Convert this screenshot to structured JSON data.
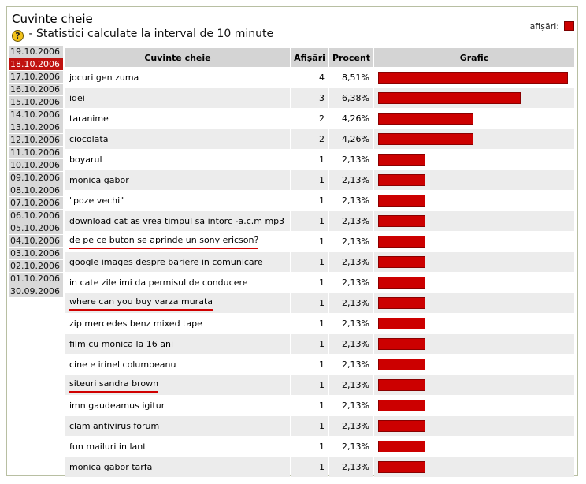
{
  "header": {
    "title": "Cuvinte cheie",
    "subtitle": "- Statistici calculate la interval de 10 minute",
    "help_icon": "question-icon",
    "legend_label": "afişări:",
    "bar_color": "#cc0000",
    "selected_color": "#c0120f"
  },
  "dates": [
    {
      "label": "19.10.2006",
      "selected": false
    },
    {
      "label": "18.10.2006",
      "selected": true
    },
    {
      "label": "17.10.2006",
      "selected": false
    },
    {
      "label": "16.10.2006",
      "selected": false
    },
    {
      "label": "15.10.2006",
      "selected": false
    },
    {
      "label": "14.10.2006",
      "selected": false
    },
    {
      "label": "13.10.2006",
      "selected": false
    },
    {
      "label": "12.10.2006",
      "selected": false
    },
    {
      "label": "11.10.2006",
      "selected": false
    },
    {
      "label": "10.10.2006",
      "selected": false
    },
    {
      "label": "09.10.2006",
      "selected": false
    },
    {
      "label": "08.10.2006",
      "selected": false
    },
    {
      "label": "07.10.2006",
      "selected": false
    },
    {
      "label": "06.10.2006",
      "selected": false
    },
    {
      "label": "05.10.2006",
      "selected": false
    },
    {
      "label": "04.10.2006",
      "selected": false
    },
    {
      "label": "03.10.2006",
      "selected": false
    },
    {
      "label": "02.10.2006",
      "selected": false
    },
    {
      "label": "01.10.2006",
      "selected": false
    },
    {
      "label": "30.09.2006",
      "selected": false
    }
  ],
  "table": {
    "headers": {
      "keyword": "Cuvinte cheie",
      "views": "Afişări",
      "percent": "Procent",
      "graph": "Grafic"
    },
    "rows": [
      {
        "keyword": "jocuri gen zuma",
        "views": 4,
        "percent": "8,51%",
        "share": 8.51,
        "underlined": false
      },
      {
        "keyword": "idei",
        "views": 3,
        "percent": "6,38%",
        "share": 6.38,
        "underlined": false
      },
      {
        "keyword": "taranime",
        "views": 2,
        "percent": "4,26%",
        "share": 4.26,
        "underlined": false
      },
      {
        "keyword": "ciocolata",
        "views": 2,
        "percent": "4,26%",
        "share": 4.26,
        "underlined": false
      },
      {
        "keyword": "boyarul",
        "views": 1,
        "percent": "2,13%",
        "share": 2.13,
        "underlined": false
      },
      {
        "keyword": "monica gabor",
        "views": 1,
        "percent": "2,13%",
        "share": 2.13,
        "underlined": false
      },
      {
        "keyword": "\"poze vechi\"",
        "views": 1,
        "percent": "2,13%",
        "share": 2.13,
        "underlined": false
      },
      {
        "keyword": "download cat as vrea timpul sa intorc -a.c.m mp3",
        "views": 1,
        "percent": "2,13%",
        "share": 2.13,
        "underlined": false
      },
      {
        "keyword": "de pe ce buton se aprinde un sony ericson?",
        "views": 1,
        "percent": "2,13%",
        "share": 2.13,
        "underlined": true
      },
      {
        "keyword": "google images despre bariere in comunicare",
        "views": 1,
        "percent": "2,13%",
        "share": 2.13,
        "underlined": false
      },
      {
        "keyword": "in cate zile imi da permisul de conducere",
        "views": 1,
        "percent": "2,13%",
        "share": 2.13,
        "underlined": false
      },
      {
        "keyword": "where can you buy varza murata",
        "views": 1,
        "percent": "2,13%",
        "share": 2.13,
        "underlined": true
      },
      {
        "keyword": "zip mercedes benz mixed tape",
        "views": 1,
        "percent": "2,13%",
        "share": 2.13,
        "underlined": false
      },
      {
        "keyword": "film cu monica la 16 ani",
        "views": 1,
        "percent": "2,13%",
        "share": 2.13,
        "underlined": false
      },
      {
        "keyword": "cine e irinel columbeanu",
        "views": 1,
        "percent": "2,13%",
        "share": 2.13,
        "underlined": false
      },
      {
        "keyword": "siteuri sandra brown",
        "views": 1,
        "percent": "2,13%",
        "share": 2.13,
        "underlined": true
      },
      {
        "keyword": "imn gaudeamus igitur",
        "views": 1,
        "percent": "2,13%",
        "share": 2.13,
        "underlined": false
      },
      {
        "keyword": "clam antivirus forum",
        "views": 1,
        "percent": "2,13%",
        "share": 2.13,
        "underlined": false
      },
      {
        "keyword": "fun mailuri in lant",
        "views": 1,
        "percent": "2,13%",
        "share": 2.13,
        "underlined": false
      },
      {
        "keyword": "monica gabor tarfa",
        "views": 1,
        "percent": "2,13%",
        "share": 2.13,
        "underlined": false
      }
    ]
  }
}
